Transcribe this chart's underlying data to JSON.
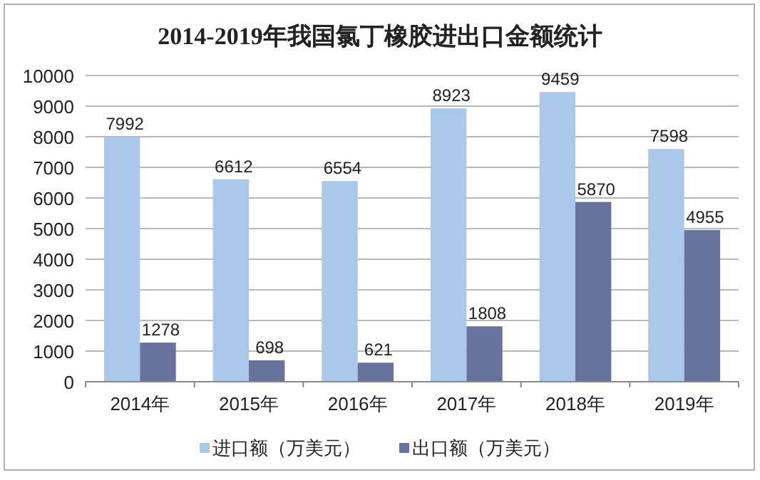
{
  "chart_data": {
    "type": "bar",
    "title": "2014-2019年我国氯丁橡胶进出口金额统计",
    "categories": [
      "2014年",
      "2015年",
      "2016年",
      "2017年",
      "2018年",
      "2019年"
    ],
    "series": [
      {
        "name": "进口额（万美元）",
        "color": "#a9c8ea",
        "values": [
          7992,
          6612,
          6554,
          8923,
          9459,
          7598
        ]
      },
      {
        "name": "出口额（万美元）",
        "color": "#67739c",
        "values": [
          1278,
          698,
          621,
          1808,
          5870,
          4955
        ]
      }
    ],
    "ylim": [
      0,
      10000
    ],
    "yticks": [
      0,
      1000,
      2000,
      3000,
      4000,
      5000,
      6000,
      7000,
      8000,
      9000,
      10000
    ],
    "grid": "y",
    "legend": "bottom",
    "data_labels": true
  }
}
